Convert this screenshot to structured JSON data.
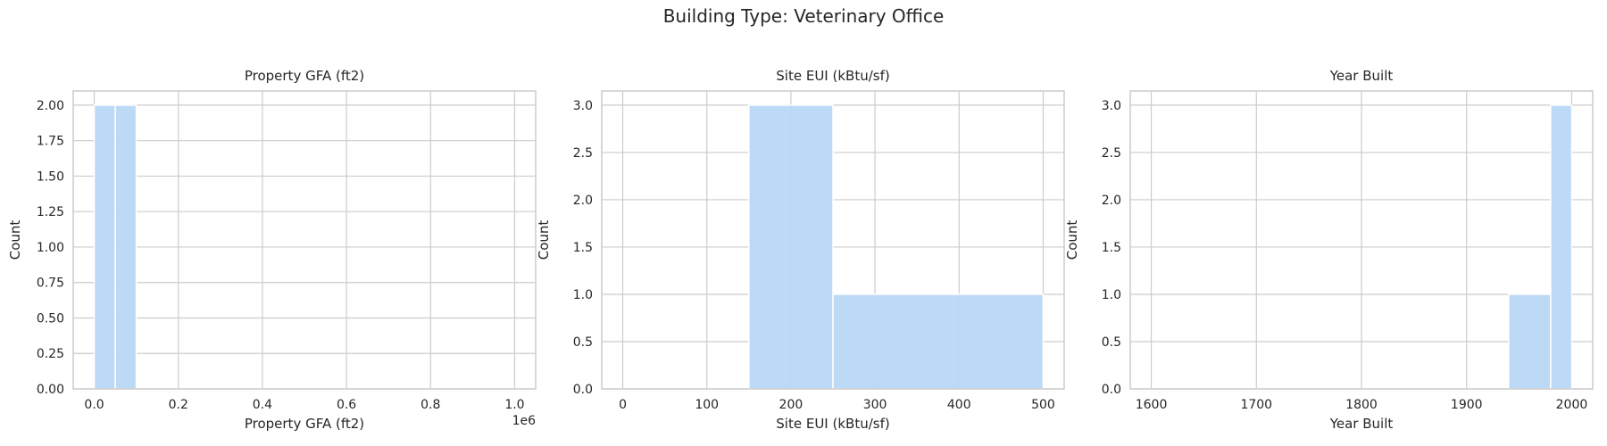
{
  "figure_title": "Building Type: Veterinary Office",
  "colors": {
    "bar": "#b8d7f5",
    "grid": "#cccccc",
    "spine": "#cccccc",
    "text": "#262626"
  },
  "chart_data": [
    {
      "type": "bar",
      "title": "Property GFA (ft2)",
      "xlabel": "Property GFA (ft2)",
      "ylabel": "Count",
      "xlim": [
        -50000,
        1050000
      ],
      "ylim": [
        0,
        2.1
      ],
      "xticks": [
        0,
        200000,
        400000,
        600000,
        800000,
        1000000
      ],
      "xtick_labels": [
        "0.0",
        "0.2",
        "0.4",
        "0.6",
        "0.8",
        "1.0"
      ],
      "yticks": [
        0,
        0.25,
        0.5,
        0.75,
        1.0,
        1.25,
        1.5,
        1.75,
        2.0
      ],
      "ytick_labels": [
        "0.00",
        "0.25",
        "0.50",
        "0.75",
        "1.00",
        "1.25",
        "1.50",
        "1.75",
        "2.00"
      ],
      "offset_label": "1e6",
      "bins": [
        {
          "x0": 0,
          "x1": 50000,
          "count": 2
        },
        {
          "x0": 50000,
          "x1": 100000,
          "count": 2
        }
      ],
      "grid": true
    },
    {
      "type": "bar",
      "title": "Site EUI (kBtu/sf)",
      "xlabel": "Site EUI (kBtu/sf)",
      "ylabel": "Count",
      "xlim": [
        -25,
        525
      ],
      "ylim": [
        0,
        3.15
      ],
      "xticks": [
        0,
        100,
        200,
        300,
        400,
        500
      ],
      "xtick_labels": [
        "0",
        "100",
        "200",
        "300",
        "400",
        "500"
      ],
      "yticks": [
        0,
        0.5,
        1.0,
        1.5,
        2.0,
        2.5,
        3.0
      ],
      "ytick_labels": [
        "0.0",
        "0.5",
        "1.0",
        "1.5",
        "2.0",
        "2.5",
        "3.0"
      ],
      "bins": [
        {
          "x0": 150,
          "x1": 250,
          "count": 3
        },
        {
          "x0": 250,
          "x1": 500,
          "count": 1
        }
      ],
      "grid": true
    },
    {
      "type": "bar",
      "title": "Year Built",
      "xlabel": "Year Built",
      "ylabel": "Count",
      "xlim": [
        1580,
        2020
      ],
      "ylim": [
        0,
        3.15
      ],
      "xticks": [
        1600,
        1700,
        1800,
        1900,
        2000
      ],
      "xtick_labels": [
        "1600",
        "1700",
        "1800",
        "1900",
        "2000"
      ],
      "yticks": [
        0,
        0.5,
        1.0,
        1.5,
        2.0,
        2.5,
        3.0
      ],
      "ytick_labels": [
        "0.0",
        "0.5",
        "1.0",
        "1.5",
        "2.0",
        "2.5",
        "3.0"
      ],
      "bins": [
        {
          "x0": 1940,
          "x1": 1980,
          "count": 1
        },
        {
          "x0": 1980,
          "x1": 2000,
          "count": 3
        }
      ],
      "grid": true
    }
  ]
}
